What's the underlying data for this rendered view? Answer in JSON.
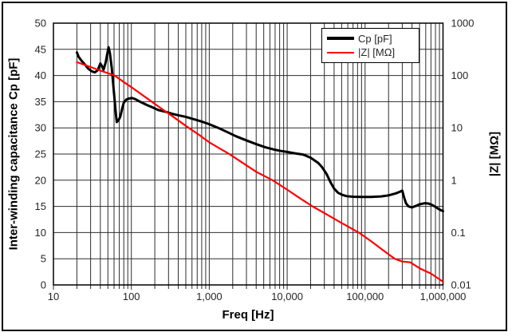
{
  "window": {
    "background": "#ffffff",
    "frame_border_color": "#000000"
  },
  "chart_data": {
    "type": "line",
    "title": "",
    "grid": {
      "show": true,
      "color": "#2e2e2e",
      "minor_log_vertical": true
    },
    "text_color": "#262626",
    "x_axis": {
      "label": "Freq [Hz]",
      "scale": "log",
      "min": 10,
      "max": 1000000,
      "tick_labels": [
        "10",
        "100",
        "1,000",
        "10,000",
        "100,000",
        "1,000,000"
      ]
    },
    "y_left": {
      "label": "Inter-winding capacitance Cp [pF]",
      "scale": "linear",
      "min": 0,
      "max": 50,
      "tick_step": 5,
      "tick_labels": [
        "50",
        "45",
        "40",
        "35",
        "30",
        "25",
        "20",
        "15",
        "10",
        "5",
        "0"
      ]
    },
    "y_right": {
      "label": "|Z| [MΩ]",
      "scale": "log",
      "min": 0.01,
      "max": 1000,
      "tick_labels": [
        "1000",
        "100",
        "10",
        "1",
        "0.1",
        "0.01"
      ]
    },
    "legend": [
      {
        "name": "Cp [pF]",
        "color": "#000000"
      },
      {
        "name": "|Z| [MΩ]",
        "color": "#ff0000"
      }
    ],
    "series": [
      {
        "name": "Cp [pF]",
        "axis": "left",
        "color": "#000000",
        "width": 3,
        "points": [
          [
            20,
            44.4
          ],
          [
            21,
            43.6
          ],
          [
            23,
            42.8
          ],
          [
            25,
            42.2
          ],
          [
            28,
            41.3
          ],
          [
            31,
            40.8
          ],
          [
            34,
            40.6
          ],
          [
            37,
            41.0
          ],
          [
            40,
            42.3
          ],
          [
            42,
            41.8
          ],
          [
            44,
            41.1
          ],
          [
            47,
            42.6
          ],
          [
            49,
            44.1
          ],
          [
            51,
            45.4
          ],
          [
            53,
            44.3
          ],
          [
            56,
            41.5
          ],
          [
            60,
            36.5
          ],
          [
            63,
            33.0
          ],
          [
            65,
            31.1
          ],
          [
            68,
            31.4
          ],
          [
            72,
            32.1
          ],
          [
            76,
            33.6
          ],
          [
            80,
            34.8
          ],
          [
            86,
            35.4
          ],
          [
            93,
            35.6
          ],
          [
            102,
            35.7
          ],
          [
            112,
            35.5
          ],
          [
            125,
            35.1
          ],
          [
            142,
            34.7
          ],
          [
            162,
            34.3
          ],
          [
            188,
            33.9
          ],
          [
            222,
            33.4
          ],
          [
            270,
            33.1
          ],
          [
            330,
            32.7
          ],
          [
            400,
            32.4
          ],
          [
            500,
            32.1
          ],
          [
            650,
            31.6
          ],
          [
            800,
            31.2
          ],
          [
            1000,
            30.7
          ],
          [
            1300,
            30.0
          ],
          [
            1700,
            29.2
          ],
          [
            2200,
            28.4
          ],
          [
            3000,
            27.6
          ],
          [
            4000,
            26.9
          ],
          [
            5200,
            26.3
          ],
          [
            6600,
            25.9
          ],
          [
            8200,
            25.6
          ],
          [
            10000,
            25.4
          ],
          [
            13000,
            25.1
          ],
          [
            16000,
            24.9
          ],
          [
            20000,
            24.3
          ],
          [
            25000,
            23.3
          ],
          [
            28000,
            22.5
          ],
          [
            32000,
            21.2
          ],
          [
            36000,
            19.6
          ],
          [
            40000,
            18.4
          ],
          [
            45000,
            17.6
          ],
          [
            51000,
            17.2
          ],
          [
            58000,
            16.95
          ],
          [
            70000,
            16.85
          ],
          [
            90000,
            16.8
          ],
          [
            120000,
            16.8
          ],
          [
            160000,
            16.9
          ],
          [
            200000,
            17.1
          ],
          [
            250000,
            17.5
          ],
          [
            280000,
            17.8
          ],
          [
            300000,
            18.0
          ],
          [
            315000,
            16.8
          ],
          [
            335000,
            15.6
          ],
          [
            360000,
            15.0
          ],
          [
            400000,
            14.8
          ],
          [
            450000,
            15.1
          ],
          [
            500000,
            15.4
          ],
          [
            580000,
            15.6
          ],
          [
            650000,
            15.55
          ],
          [
            720000,
            15.3
          ],
          [
            800000,
            14.9
          ],
          [
            900000,
            14.4
          ],
          [
            1000000,
            14.1
          ]
        ]
      },
      {
        "name": "|Z| [MΩ]",
        "axis": "right",
        "color": "#ff0000",
        "width": 2.2,
        "points": [
          [
            20,
            180
          ],
          [
            25,
            160
          ],
          [
            30,
            145
          ],
          [
            40,
            124
          ],
          [
            50,
            111
          ],
          [
            61,
            100
          ],
          [
            80,
            75
          ],
          [
            100,
            60
          ],
          [
            150,
            39
          ],
          [
            183,
            31.6
          ],
          [
            250,
            22.7
          ],
          [
            350,
            16
          ],
          [
            544,
            10
          ],
          [
            700,
            7.8
          ],
          [
            1000,
            5.3
          ],
          [
            1810,
            3.16
          ],
          [
            2500,
            2.3
          ],
          [
            4000,
            1.45
          ],
          [
            6500,
            1.0
          ],
          [
            10000,
            0.66
          ],
          [
            15000,
            0.44
          ],
          [
            21200,
            0.316
          ],
          [
            30000,
            0.236
          ],
          [
            50000,
            0.152
          ],
          [
            83000,
            0.1
          ],
          [
            120000,
            0.068
          ],
          [
            170000,
            0.046
          ],
          [
            240000,
            0.0316
          ],
          [
            300000,
            0.028
          ],
          [
            380000,
            0.027
          ],
          [
            512000,
            0.0204
          ],
          [
            700000,
            0.0165
          ],
          [
            1000000,
            0.0115
          ]
        ]
      }
    ]
  }
}
